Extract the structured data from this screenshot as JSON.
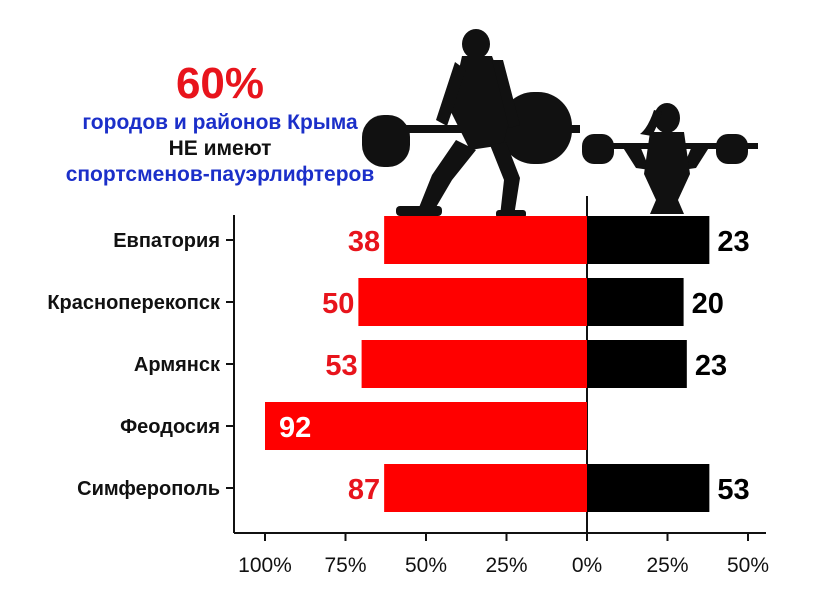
{
  "headline": {
    "big": "60%",
    "line1": "городов и районов Крыма",
    "line2": "НЕ имеют",
    "line3": "спортсменов-пауэрлифтеров"
  },
  "colors": {
    "men": "#ff0000",
    "women": "#000000",
    "men_label": "#e8141c",
    "women_label": "#000000",
    "headline_red": "#e8141c",
    "headline_blue": "#1b2fc9"
  },
  "icons": {
    "left": "male-powerlifter-silhouette-icon",
    "right": "female-barbell-silhouette-icon"
  },
  "chart_data": {
    "type": "bar",
    "orientation": "horizontal-diverging",
    "categories": [
      "Евпатория",
      "Красноперекопск",
      "Армянск",
      "Феодосия",
      "Симферополь"
    ],
    "series": [
      {
        "side": "left",
        "values": [
          38,
          50,
          53,
          92,
          87
        ],
        "bar_percent": [
          63,
          71,
          70,
          100,
          63
        ]
      },
      {
        "side": "right",
        "values": [
          23,
          20,
          23,
          null,
          53
        ],
        "bar_percent": [
          38,
          30,
          31,
          0,
          38
        ]
      }
    ],
    "x_ticks": [
      "100%",
      "75%",
      "50%",
      "25%",
      "0%",
      "25%",
      "50%"
    ],
    "xlim": [
      -100,
      50
    ],
    "grid": false,
    "legend": "none"
  }
}
